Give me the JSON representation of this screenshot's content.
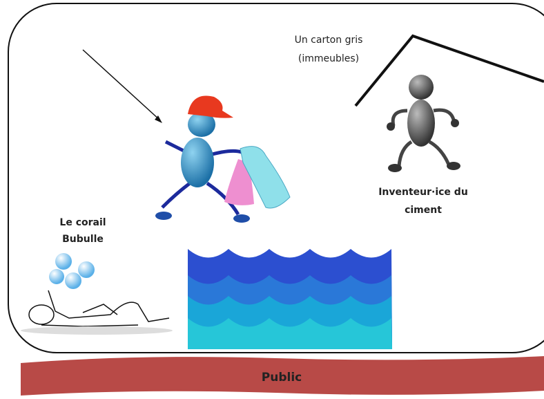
{
  "labels": {
    "carton": [
      "Un carton gris",
      "(immeubles)"
    ],
    "inventor": [
      "Inventeur·ice du",
      "ciment"
    ],
    "coral": [
      "Le corail",
      "Bubulle"
    ],
    "audience": "Public"
  }
}
